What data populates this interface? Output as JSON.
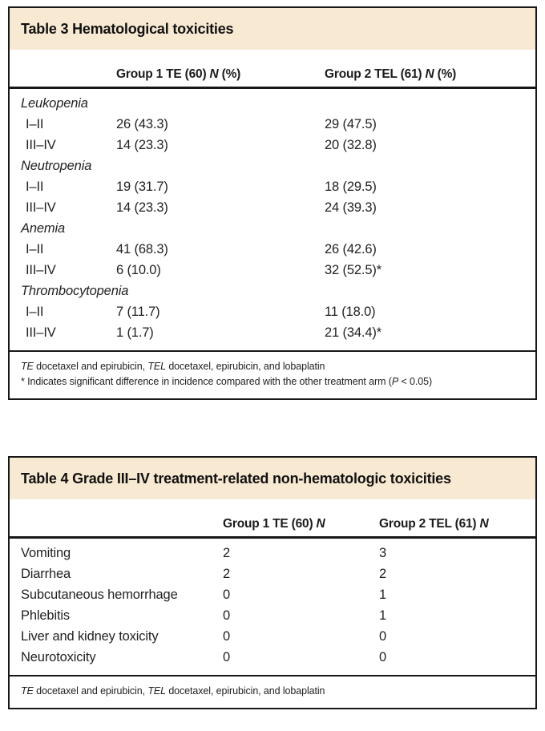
{
  "colors": {
    "band_background": "#f8e9d2",
    "border": "#171717",
    "text": "#1b1b1b"
  },
  "table3": {
    "title": "Table 3 Hematological toxicities",
    "columns": {
      "group1": {
        "prefix": "Group 1 TE (60) ",
        "n": "N",
        "suffix": " (%)"
      },
      "group2": {
        "prefix": "Group 2 TEL (61) ",
        "n": "N",
        "suffix": " (%)"
      }
    },
    "rows": [
      {
        "label": "Leukopenia",
        "kind": "category"
      },
      {
        "label": "I–II",
        "kind": "grade",
        "group1": "26 (43.3)",
        "group2": "29 (47.5)"
      },
      {
        "label": "III–IV",
        "kind": "grade",
        "group1": "14 (23.3)",
        "group2": "20 (32.8)"
      },
      {
        "label": "Neutropenia",
        "kind": "category"
      },
      {
        "label": "I–II",
        "kind": "grade",
        "group1": "19 (31.7)",
        "group2": "18 (29.5)"
      },
      {
        "label": "III–IV",
        "kind": "grade",
        "group1": "14 (23.3)",
        "group2": "24 (39.3)"
      },
      {
        "label": "Anemia",
        "kind": "category"
      },
      {
        "label": "I–II",
        "kind": "grade",
        "group1": "41 (68.3)",
        "group2": "26 (42.6)"
      },
      {
        "label": "III–IV",
        "kind": "grade",
        "group1": "6 (10.0)",
        "group2": "32 (52.5)*"
      },
      {
        "label": "Thrombocytopenia",
        "kind": "category"
      },
      {
        "label": "I–II",
        "kind": "grade",
        "group1": "7 (11.7)",
        "group2": "11 (18.0)"
      },
      {
        "label": "III–IV",
        "kind": "grade",
        "group1": "1 (1.7)",
        "group2": "21 (34.4)*"
      }
    ],
    "footnotes": {
      "abbrev": {
        "te": "TE",
        "te_text": " docetaxel and epirubicin, ",
        "tel": "TEL",
        "tel_text": " docetaxel, epirubicin, and lobaplatin"
      },
      "significance": {
        "before_p": "* Indicates significant difference in incidence compared with the other treatment arm (",
        "p": "P",
        "after_p": " < 0.05)"
      }
    }
  },
  "table4": {
    "title": "Table 4 Grade III–IV treatment-related non-hematologic toxicities",
    "columns": {
      "group1": {
        "prefix": "Group 1 TE (60) ",
        "n": "N",
        "suffix": ""
      },
      "group2": {
        "prefix": "Group 2 TEL (61) ",
        "n": "N",
        "suffix": ""
      }
    },
    "rows": [
      {
        "label": "Vomiting",
        "group1": "2",
        "group2": "3"
      },
      {
        "label": "Diarrhea",
        "group1": "2",
        "group2": "2"
      },
      {
        "label": "Subcutaneous hemorrhage",
        "group1": "0",
        "group2": "1"
      },
      {
        "label": "Phlebitis",
        "group1": "0",
        "group2": "1"
      },
      {
        "label": "Liver and kidney toxicity",
        "group1": "0",
        "group2": "0"
      },
      {
        "label": "Neurotoxicity",
        "group1": "0",
        "group2": "0"
      }
    ],
    "footnotes": {
      "abbrev": {
        "te": "TE",
        "te_text": " docetaxel and epirubicin, ",
        "tel": "TEL",
        "tel_text": " docetaxel, epirubicin, and lobaplatin"
      }
    }
  }
}
